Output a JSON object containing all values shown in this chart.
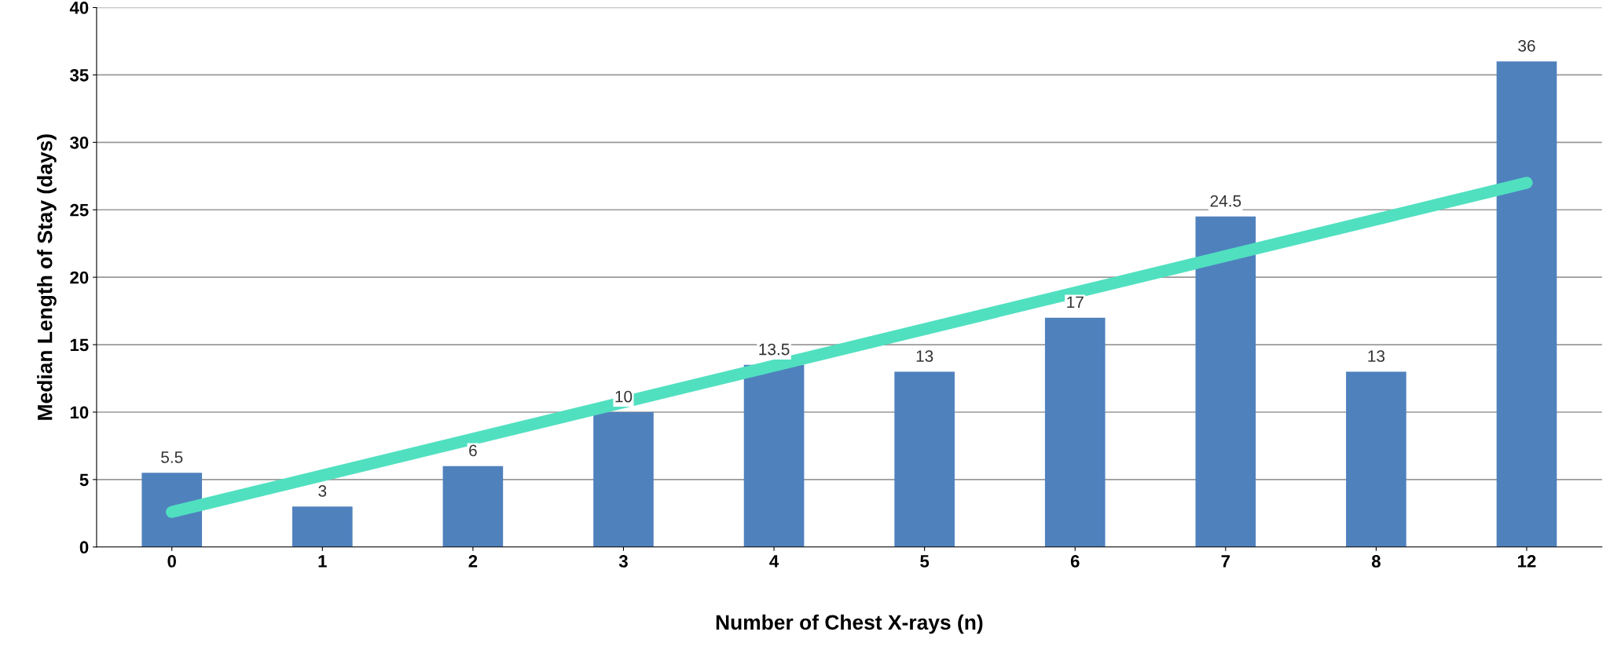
{
  "chart_data": {
    "type": "bar",
    "xlabel": "Number of Chest X-rays (n)",
    "ylabel": "Median Length of Stay (days)",
    "categories": [
      "0",
      "1",
      "2",
      "3",
      "4",
      "5",
      "6",
      "7",
      "8",
      "12"
    ],
    "series": [
      {
        "color": "#4f81bd",
        "values": [
          5.5,
          3,
          6,
          10,
          13.5,
          13,
          17,
          24.5,
          13,
          36
        ],
        "value_labels": [
          "5.5",
          "3",
          "6",
          "10",
          "13.5",
          "13",
          "17",
          "24.5",
          "13",
          "36"
        ]
      },
      {
        "type": "line",
        "color": "#50e0c0",
        "x": [
          "0",
          "12"
        ],
        "values": [
          2.6,
          27.0
        ]
      }
    ],
    "ylim": [
      0,
      40
    ],
    "yticks": [
      0,
      5,
      10,
      15,
      20,
      25,
      30,
      35,
      40
    ],
    "grid": "y",
    "legend": false
  }
}
